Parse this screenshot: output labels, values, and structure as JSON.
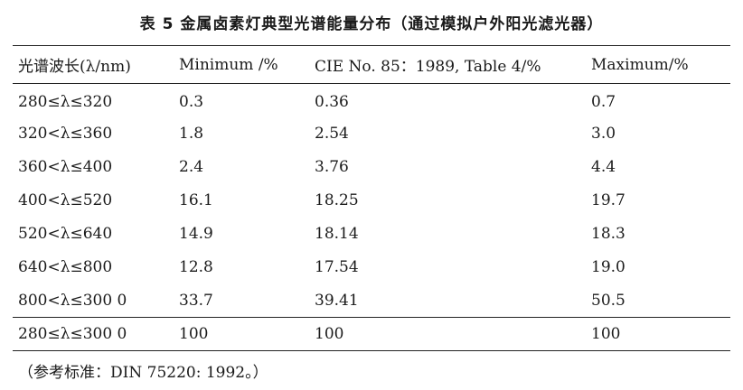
{
  "caption": "表 5  金属卤素灯典型光谱能量分布（通过模拟户外阳光滤光器）",
  "table": {
    "headers": [
      "光谱波长(λ/nm)",
      "Minimum /%",
      "CIE No. 85：1989, Table 4/%",
      "Maximum/%"
    ],
    "rows": [
      [
        "280≤λ≤320",
        "0.3",
        "0.36",
        "0.7"
      ],
      [
        "320<λ≤360",
        "1.8",
        "2.54",
        "3.0"
      ],
      [
        "360<λ≤400",
        "2.4",
        "3.76",
        "4.4"
      ],
      [
        "400<λ≤520",
        "16.1",
        "18.25",
        "19.7"
      ],
      [
        "520<λ≤640",
        "14.9",
        "18.14",
        "18.3"
      ],
      [
        "640<λ≤800",
        "12.8",
        "17.54",
        "19.0"
      ],
      [
        "800<λ≤300 0",
        "33.7",
        "39.41",
        "50.5"
      ]
    ],
    "total": [
      "280≤λ≤300 0",
      "100",
      "100",
      "100"
    ]
  },
  "note": "（参考标准：DIN 75220: 1992。）"
}
